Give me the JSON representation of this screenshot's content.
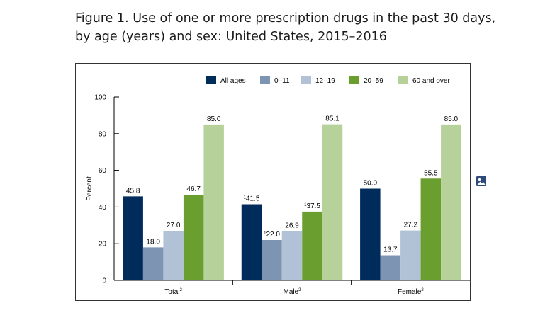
{
  "page": {
    "title": "Figure 1. Use of one or more prescription drugs in the past 30 days, by age (years) and sex: United States, 2015–2016",
    "image_icon": "image-icon"
  },
  "chart_data": {
    "type": "bar",
    "title": "",
    "ylabel": "Percent",
    "xlabel": "",
    "ylim": [
      0,
      100
    ],
    "yticks": [
      0,
      20,
      40,
      60,
      80,
      100
    ],
    "grid": false,
    "legend_position": "top-right",
    "categories": [
      "Total",
      "Male",
      "Female"
    ],
    "category_superscripts": [
      "2",
      "2",
      "2"
    ],
    "series": [
      {
        "name": "All ages",
        "color": "#002c5c",
        "values": [
          45.8,
          41.5,
          50.0
        ],
        "label_prefix": [
          "",
          "1",
          ""
        ]
      },
      {
        "name": "0–11",
        "color": "#7d95b2",
        "values": [
          18.0,
          22.0,
          13.7
        ],
        "label_prefix": [
          "",
          "1",
          ""
        ]
      },
      {
        "name": "12–19",
        "color": "#b2c2d6",
        "values": [
          27.0,
          26.9,
          27.2
        ],
        "label_prefix": [
          "",
          "",
          ""
        ]
      },
      {
        "name": "20–59",
        "color": "#6a9e2f",
        "values": [
          46.7,
          37.5,
          55.5
        ],
        "label_prefix": [
          "",
          "1",
          ""
        ]
      },
      {
        "name": "60 and over",
        "color": "#b6d29a",
        "values": [
          85.0,
          85.1,
          85.0
        ],
        "label_prefix": [
          "",
          "",
          ""
        ]
      }
    ]
  }
}
